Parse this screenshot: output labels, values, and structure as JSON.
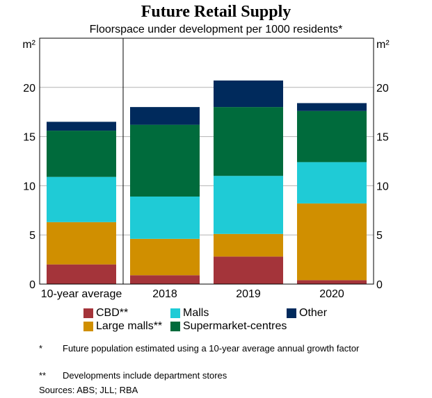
{
  "chart_data": {
    "type": "bar",
    "stacked": true,
    "title": "Future Retail Supply",
    "subtitle": "Floorspace under development per 1000 residents*",
    "ylabel_left": "m²",
    "ylabel_right": "m²",
    "ylim": [
      0,
      25
    ],
    "yticks": [
      0,
      5,
      10,
      15,
      20
    ],
    "categories": [
      "10-year average",
      "2018",
      "2019",
      "2020"
    ],
    "series": [
      {
        "name": "CBD**",
        "color": "#a4343a",
        "values": [
          2.0,
          0.9,
          2.8,
          0.4
        ]
      },
      {
        "name": "Large malls**",
        "color": "#d08f00",
        "values": [
          4.3,
          3.7,
          2.3,
          7.8
        ]
      },
      {
        "name": "Malls",
        "color": "#1fcbd6",
        "values": [
          4.6,
          4.3,
          5.9,
          4.2
        ]
      },
      {
        "name": "Supermarket-centres",
        "color": "#006b3c",
        "values": [
          4.7,
          7.3,
          7.0,
          5.2
        ]
      },
      {
        "name": "Other",
        "color": "#002a5c",
        "values": [
          0.9,
          1.8,
          2.7,
          0.8
        ]
      }
    ]
  },
  "legend": {
    "cbd": "CBD**",
    "large_malls": "Large malls**",
    "malls": "Malls",
    "supermarket": "Supermarket-centres",
    "other": "Other"
  },
  "notes": [
    {
      "mark": "*",
      "text": "Future population estimated using a 10-year average annual growth factor"
    },
    {
      "mark": "**",
      "text": "Developments include department stores"
    }
  ],
  "sources": "Sources:   ABS; JLL; RBA"
}
